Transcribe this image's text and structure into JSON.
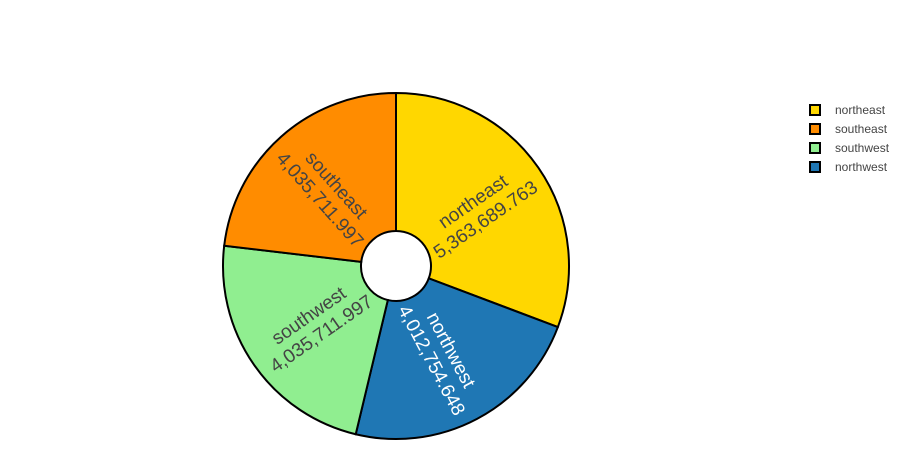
{
  "chart_data": {
    "type": "pie",
    "hole": true,
    "title": "",
    "legend_position": "top-right",
    "slices": [
      {
        "label": "northeast",
        "value": 5363689.763,
        "value_text": "5,363,689.763",
        "color": "#FFD700",
        "text_color": "#444444"
      },
      {
        "label": "northwest",
        "value": 4012754.648,
        "value_text": "4,012,754.648",
        "color": "#1F77B4",
        "text_color": "#ffffff"
      },
      {
        "label": "southwest",
        "value": 4035711.997,
        "value_text": "4,035,711.997",
        "color": "#90EE90",
        "text_color": "#444444"
      },
      {
        "label": "southeast",
        "value": 4035711.997,
        "value_text": "4,035,711.997",
        "color": "#FF8C00",
        "text_color": "#444444"
      }
    ]
  },
  "legend": {
    "items": [
      {
        "label": "northeast",
        "color": "#FFD700"
      },
      {
        "label": "southeast",
        "color": "#FF8C00"
      },
      {
        "label": "southwest",
        "color": "#90EE90"
      },
      {
        "label": "northwest",
        "color": "#1F77B4"
      }
    ]
  }
}
